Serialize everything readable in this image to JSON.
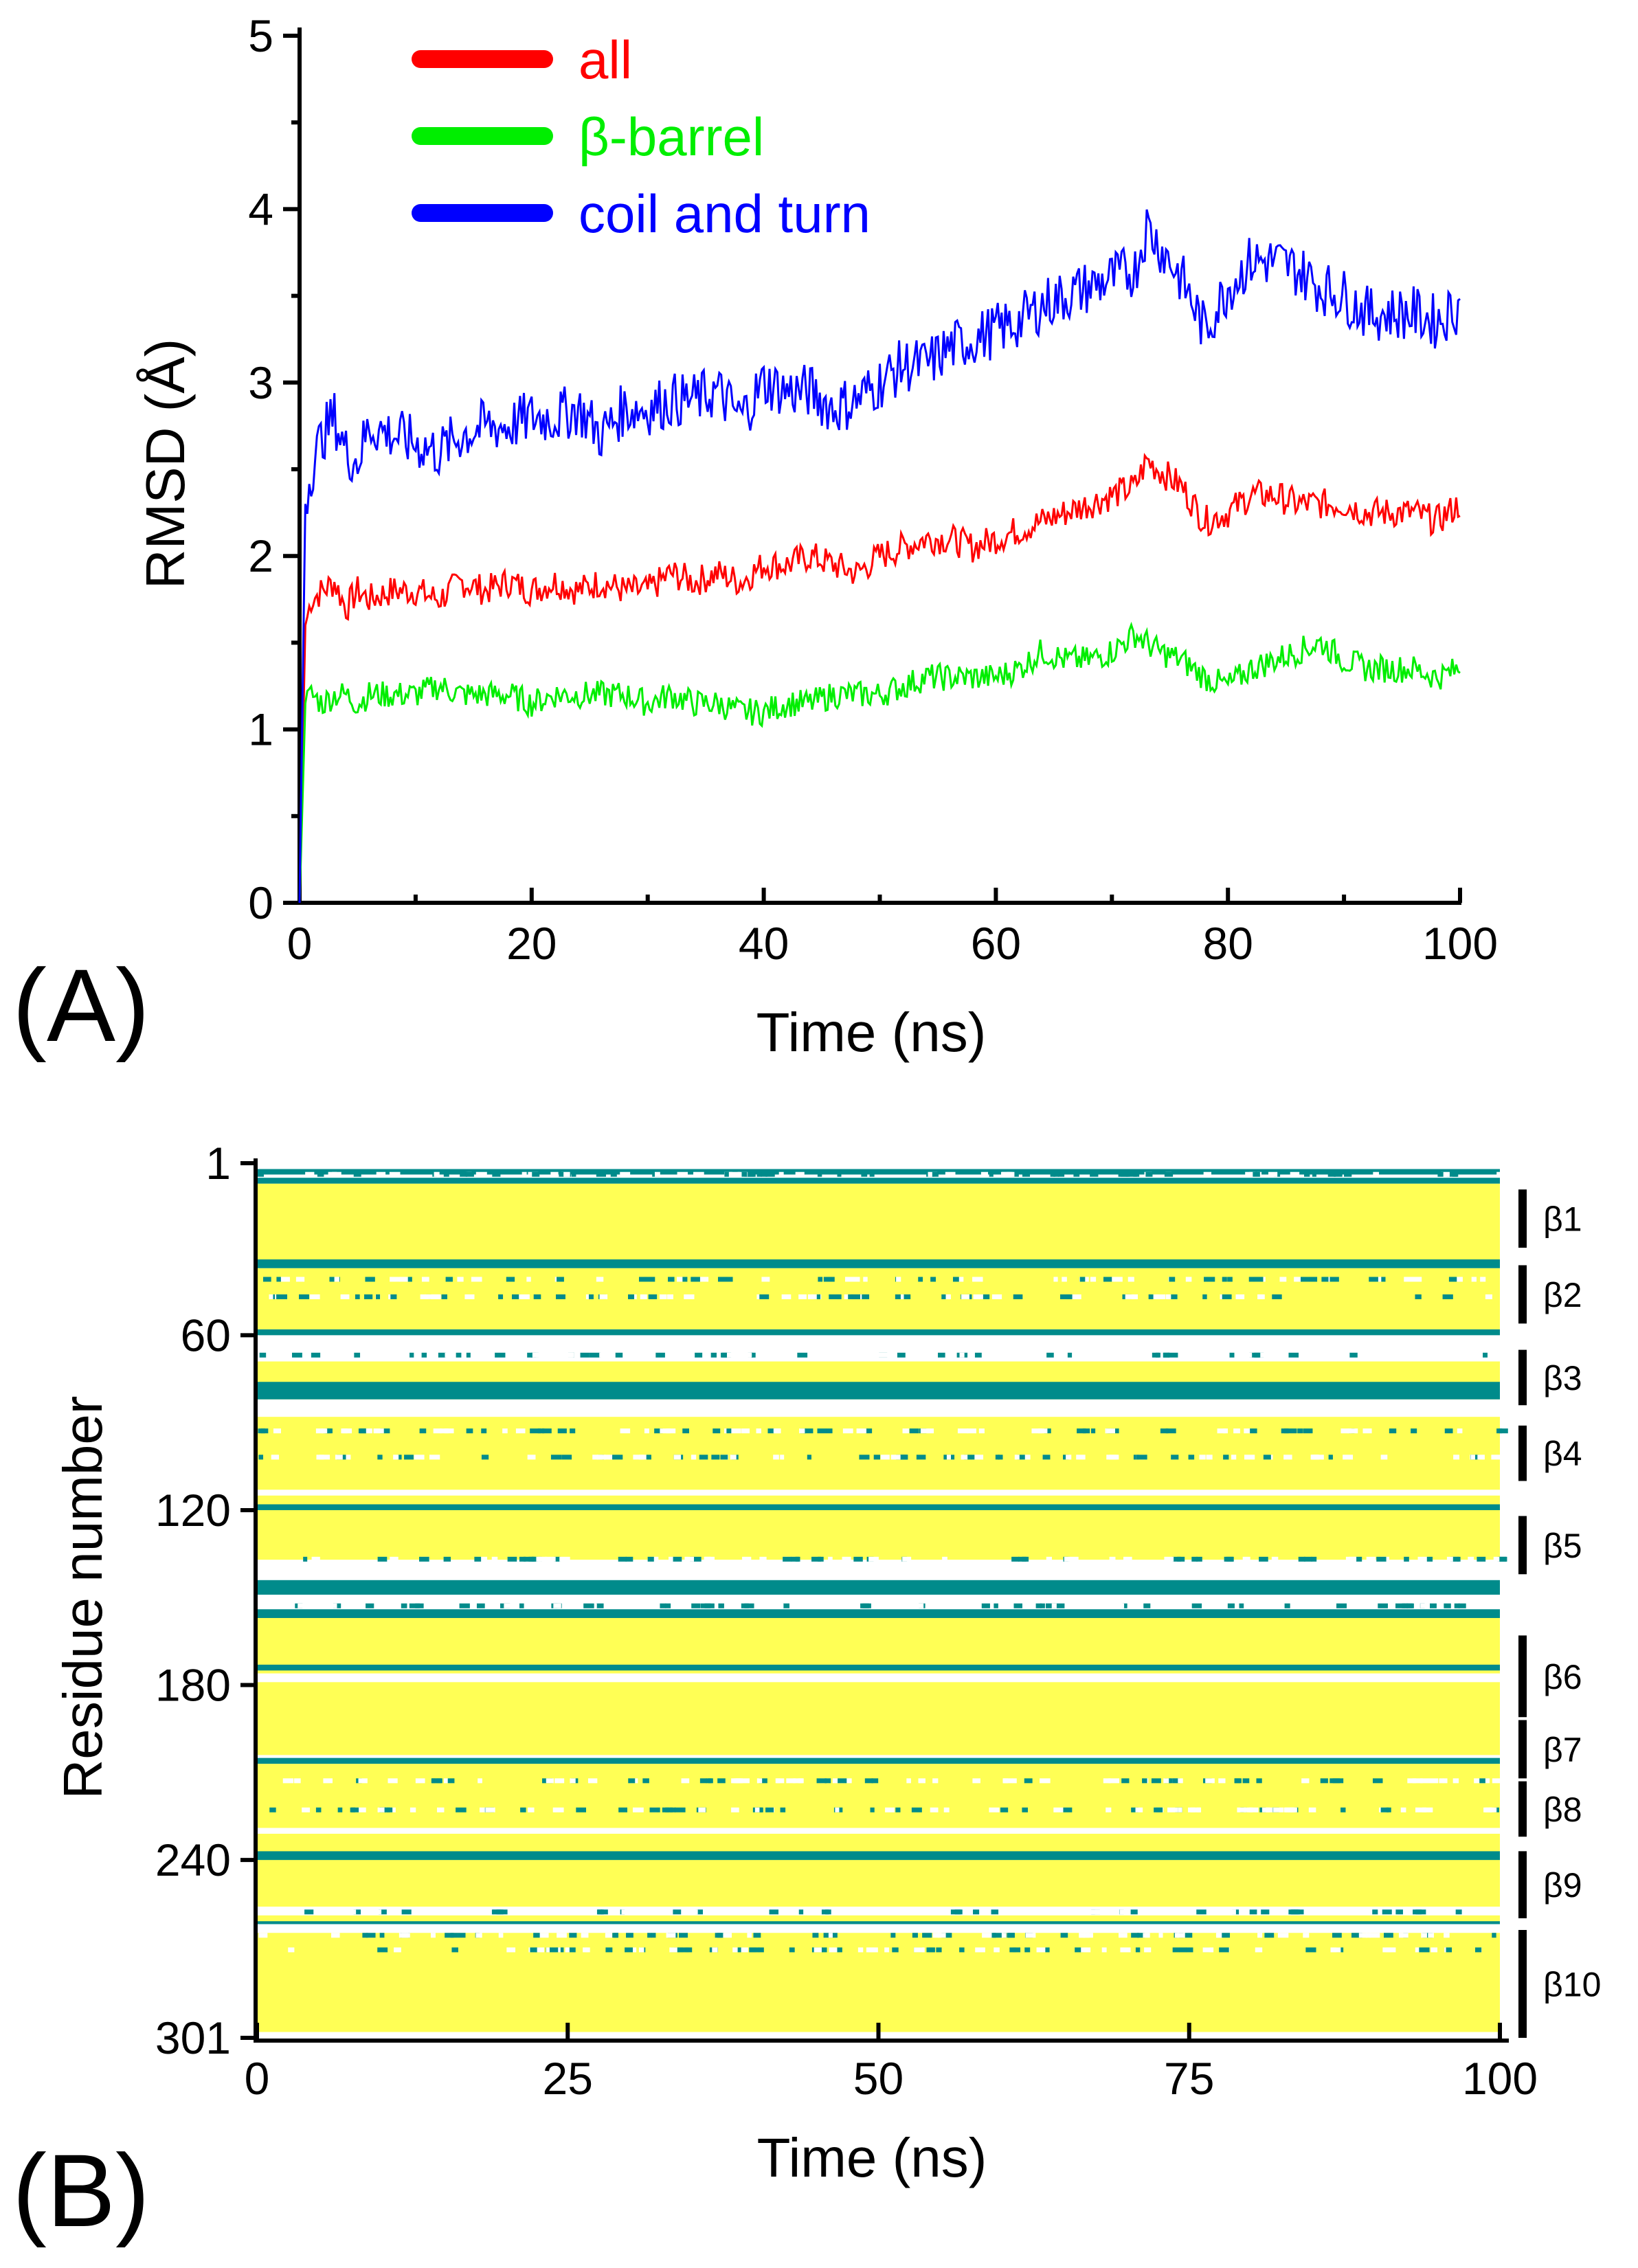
{
  "chart_data": [
    {
      "type": "line",
      "panel_label": "(A)",
      "xlabel": "Time (ns)",
      "ylabel": "RMSD (Å)",
      "xlim": [
        0,
        100
      ],
      "ylim": [
        0,
        5
      ],
      "xticks": [
        0,
        20,
        40,
        60,
        80,
        100
      ],
      "yticks": [
        0,
        1,
        2,
        3,
        4,
        5
      ],
      "xtick_labels": [
        "0",
        "20",
        "40",
        "60",
        "80",
        "100"
      ],
      "ytick_labels": [
        "0",
        "1",
        "2",
        "3",
        "4",
        "5"
      ],
      "legend": "top-left",
      "series": [
        {
          "name": "all",
          "color": "#ff0000",
          "x": [
            0,
            0.5,
            1,
            2,
            3,
            4,
            5,
            6,
            8,
            10,
            12,
            14,
            16,
            18,
            20,
            22,
            24,
            26,
            28,
            30,
            32,
            34,
            36,
            38,
            40,
            42,
            44,
            46,
            48,
            50,
            52,
            54,
            56,
            58,
            60,
            62,
            64,
            66,
            68,
            70,
            72,
            73,
            74,
            76,
            78,
            80,
            82,
            84,
            86,
            88,
            90,
            92,
            94,
            96,
            98,
            100
          ],
          "values": [
            0.0,
            1.6,
            1.75,
            1.8,
            1.85,
            1.7,
            1.8,
            1.75,
            1.8,
            1.8,
            1.75,
            1.85,
            1.8,
            1.85,
            1.8,
            1.85,
            1.8,
            1.85,
            1.8,
            1.8,
            1.9,
            1.85,
            1.9,
            1.85,
            1.95,
            1.95,
            2.0,
            1.95,
            1.9,
            2.0,
            2.05,
            2.1,
            2.1,
            2.05,
            2.1,
            2.15,
            2.2,
            2.25,
            2.3,
            2.35,
            2.4,
            2.55,
            2.5,
            2.4,
            2.2,
            2.25,
            2.35,
            2.35,
            2.3,
            2.3,
            2.3,
            2.25,
            2.25,
            2.25,
            2.2,
            2.3
          ]
        },
        {
          "name": "β-barrel",
          "color": "#00ee00",
          "x": [
            0,
            0.5,
            1,
            2,
            3,
            4,
            5,
            6,
            8,
            10,
            12,
            14,
            16,
            18,
            20,
            22,
            24,
            26,
            28,
            30,
            32,
            34,
            36,
            38,
            40,
            42,
            44,
            46,
            48,
            50,
            52,
            54,
            56,
            58,
            60,
            62,
            64,
            66,
            68,
            70,
            72,
            73,
            74,
            76,
            78,
            80,
            82,
            84,
            86,
            88,
            90,
            92,
            94,
            96,
            98,
            100
          ],
          "values": [
            0.0,
            1.15,
            1.2,
            1.15,
            1.2,
            1.2,
            1.15,
            1.2,
            1.2,
            1.2,
            1.25,
            1.2,
            1.2,
            1.2,
            1.15,
            1.2,
            1.2,
            1.2,
            1.2,
            1.15,
            1.2,
            1.15,
            1.15,
            1.1,
            1.1,
            1.15,
            1.15,
            1.2,
            1.2,
            1.2,
            1.25,
            1.3,
            1.3,
            1.3,
            1.3,
            1.35,
            1.45,
            1.4,
            1.4,
            1.45,
            1.55,
            1.5,
            1.45,
            1.4,
            1.3,
            1.25,
            1.35,
            1.4,
            1.45,
            1.5,
            1.4,
            1.35,
            1.35,
            1.35,
            1.3,
            1.35
          ]
        },
        {
          "name": "coil and turn",
          "color": "#0000ff",
          "x": [
            0,
            0.5,
            1,
            2,
            3,
            4,
            5,
            6,
            8,
            10,
            12,
            14,
            16,
            18,
            20,
            22,
            24,
            26,
            28,
            30,
            32,
            34,
            36,
            38,
            40,
            42,
            44,
            46,
            48,
            50,
            52,
            54,
            56,
            58,
            60,
            62,
            64,
            66,
            68,
            70,
            72,
            73,
            74,
            76,
            78,
            80,
            82,
            84,
            86,
            88,
            90,
            92,
            94,
            96,
            98,
            100
          ],
          "values": [
            0.0,
            2.3,
            2.5,
            2.7,
            2.8,
            2.6,
            2.55,
            2.75,
            2.7,
            2.65,
            2.6,
            2.7,
            2.75,
            2.75,
            2.8,
            2.8,
            2.85,
            2.7,
            2.85,
            2.85,
            2.9,
            2.9,
            2.95,
            2.8,
            3.0,
            2.95,
            2.95,
            2.85,
            2.9,
            3.0,
            3.1,
            3.1,
            3.2,
            3.25,
            3.3,
            3.35,
            3.45,
            3.5,
            3.55,
            3.6,
            3.65,
            3.9,
            3.8,
            3.6,
            3.3,
            3.55,
            3.7,
            3.7,
            3.65,
            3.55,
            3.5,
            3.4,
            3.4,
            3.4,
            3.35,
            3.45
          ]
        }
      ]
    },
    {
      "type": "heatmap",
      "panel_label": "(B)",
      "xlabel": "Time (ns)",
      "ylabel": "Residue number",
      "xlim": [
        0,
        100
      ],
      "ylim": [
        1,
        301
      ],
      "xticks": [
        0,
        25,
        50,
        75,
        100
      ],
      "yticks": [
        1,
        60,
        120,
        180,
        240,
        301
      ],
      "xtick_labels": [
        "0",
        "25",
        "50",
        "75",
        "100"
      ],
      "ytick_labels": [
        "1",
        "60",
        "120",
        "180",
        "240",
        "301"
      ],
      "colors": {
        "strand": "#ffff55",
        "turn": "#008b8b",
        "coil": "#ffffff",
        "helix": "#0000dd"
      },
      "strand_bands": [
        [
          8,
          33
        ],
        [
          37,
          57
        ],
        [
          65,
          81
        ],
        [
          88,
          112
        ],
        [
          115,
          136
        ],
        [
          155,
          175
        ],
        [
          179,
          203
        ],
        [
          207,
          228
        ],
        [
          231,
          255
        ],
        [
          259,
          298
        ]
      ],
      "turn_bands": [
        [
          3,
          3
        ],
        [
          6,
          7
        ],
        [
          34,
          36
        ],
        [
          58,
          59
        ],
        [
          76,
          81
        ],
        [
          118,
          119
        ],
        [
          144,
          148
        ],
        [
          154,
          156
        ],
        [
          173,
          174
        ],
        [
          205,
          206
        ],
        [
          237,
          239
        ],
        [
          261,
          263
        ]
      ],
      "coil_bands": [
        [
          1,
          2
        ],
        [
          63,
          68
        ],
        [
          138,
          142
        ],
        [
          262,
          264
        ],
        [
          299,
          301
        ]
      ],
      "strand_labels": [
        {
          "label": "β1",
          "from": 10,
          "to": 30
        },
        {
          "label": "β2",
          "from": 36,
          "to": 56
        },
        {
          "label": "β3",
          "from": 65,
          "to": 84
        },
        {
          "label": "β4",
          "from": 91,
          "to": 110
        },
        {
          "label": "β5",
          "from": 122,
          "to": 142
        },
        {
          "label": "β6",
          "from": 163,
          "to": 191
        },
        {
          "label": "β7",
          "from": 192,
          "to": 212
        },
        {
          "label": "β8",
          "from": 213,
          "to": 232
        },
        {
          "label": "β9",
          "from": 237,
          "to": 260
        },
        {
          "label": "β10",
          "from": 264,
          "to": 301
        }
      ]
    }
  ]
}
